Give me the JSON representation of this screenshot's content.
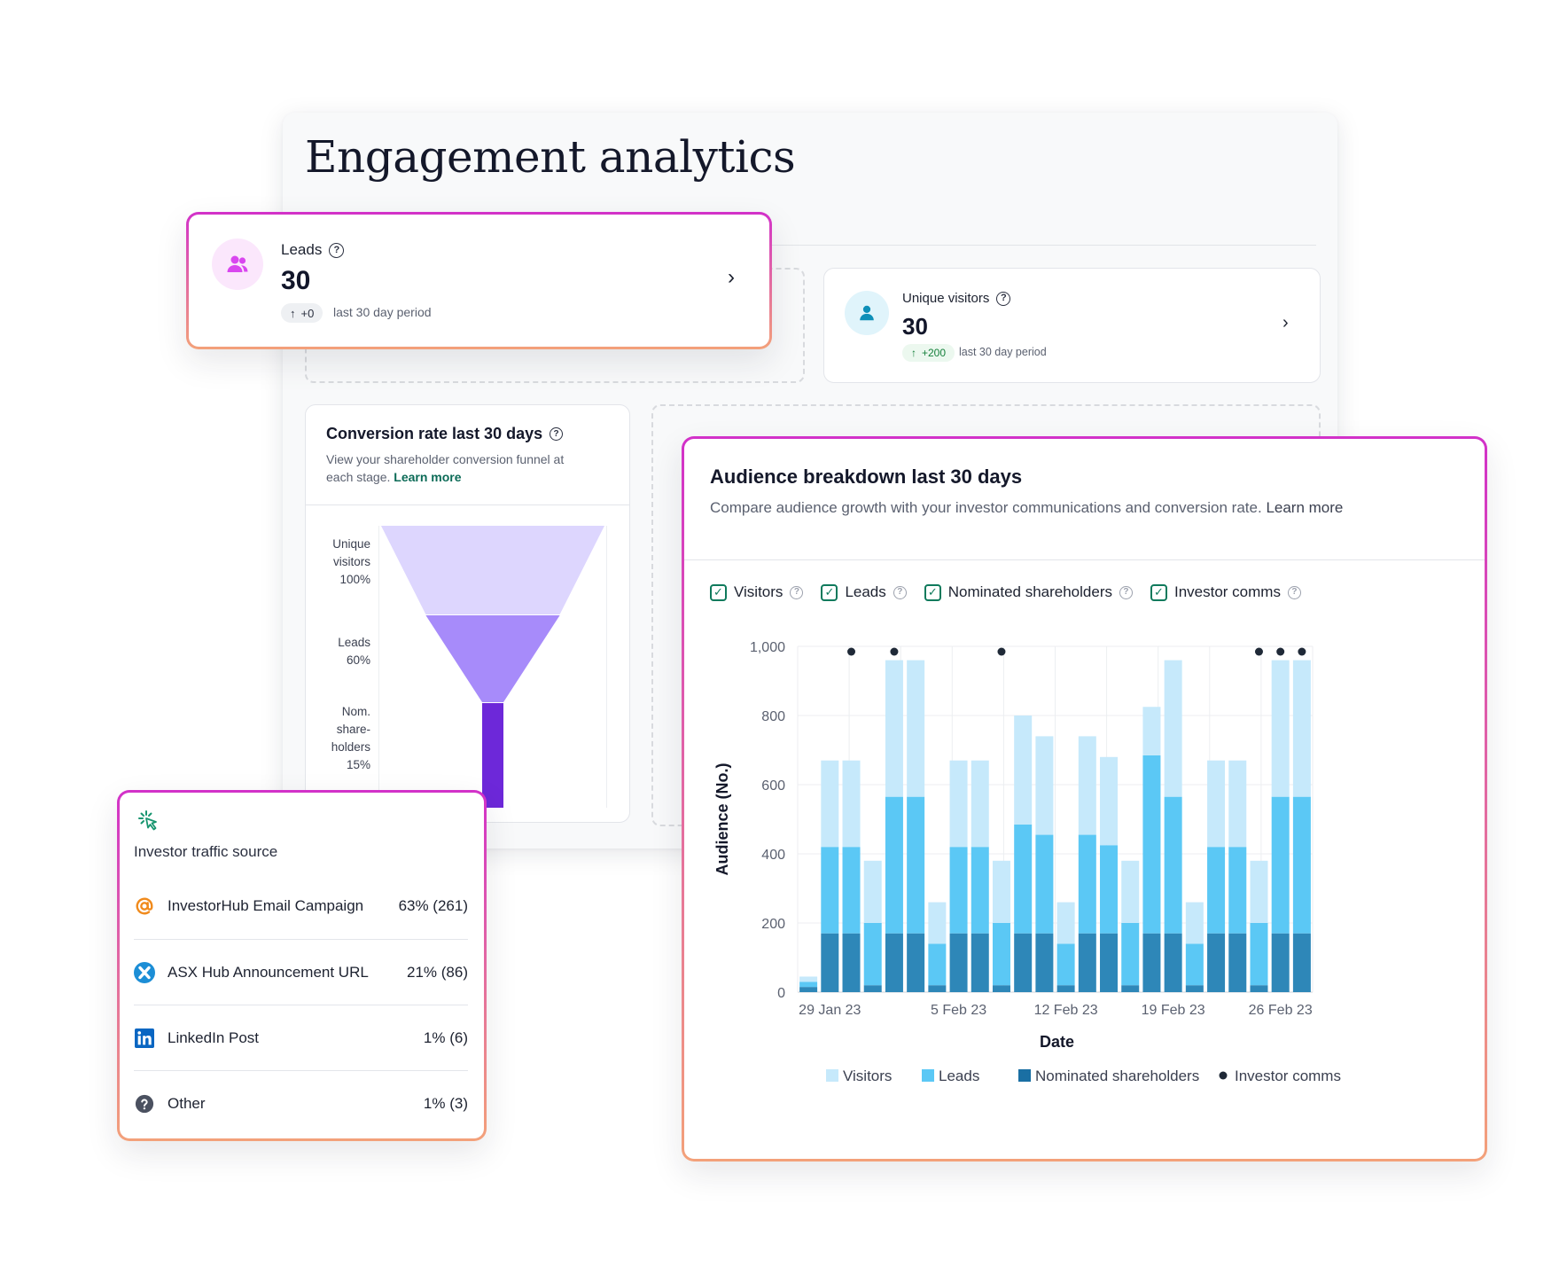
{
  "page": {
    "title": "Engagement analytics"
  },
  "leads_card": {
    "label": "Leads",
    "value": "30",
    "delta": "+0",
    "delta_arrow": "↑",
    "period": "last 30 day period",
    "icon": "users-icon",
    "accent": "#d946ef"
  },
  "visitors_card": {
    "label": "Unique visitors",
    "value": "30",
    "delta": "+200",
    "delta_arrow": "↑",
    "period": "last 30 day period",
    "icon": "user-icon",
    "accent": "#0e8fb8"
  },
  "conversion": {
    "title": "Conversion rate last 30 days",
    "subtitle": "View your shareholder conversion funnel at each stage.",
    "learn_more": "Learn more",
    "stages": [
      {
        "lines": [
          "Unique",
          "visitors",
          "100%"
        ],
        "percent": 100,
        "color": "#ddd6fe"
      },
      {
        "lines": [
          "Leads",
          "60%"
        ],
        "percent": 60,
        "color": "#a78bfa"
      },
      {
        "lines": [
          "Nom.",
          "share-",
          "holders",
          "15%"
        ],
        "percent": 15,
        "color": "#6d28d9"
      }
    ]
  },
  "traffic": {
    "title": "Investor traffic source",
    "icon": "cursor-click-icon",
    "rows": [
      {
        "name": "InvestorHub Email Campaign",
        "value": "63% (261)",
        "icon": "at-sign-icon",
        "color": "#f08a1c"
      },
      {
        "name": "ASX Hub Announcement URL",
        "value": "21% (86)",
        "icon": "x-logo-icon",
        "color": "#1c8ed6"
      },
      {
        "name": "LinkedIn Post",
        "value": "1% (6)",
        "icon": "linkedin-icon",
        "color": "#0a66c2"
      },
      {
        "name": "Other",
        "value": "1% (3)",
        "icon": "question-icon",
        "color": "#4b5160"
      }
    ]
  },
  "audience": {
    "title": "Audience breakdown last 30 days",
    "subtitle": "Compare audience growth with your investor communications and conversion rate.",
    "learn_more": "Learn more",
    "toggles": [
      "Visitors",
      "Leads",
      "Nominated shareholders",
      "Investor comms"
    ]
  },
  "chart_data": {
    "type": "bar",
    "stacked": true,
    "xlabel": "Date",
    "ylabel": "Audience (No.)",
    "ylim": [
      0,
      1000
    ],
    "yticks": [
      "0",
      "200",
      "400",
      "600",
      "800",
      "1,000"
    ],
    "xtick_labels": [
      {
        "label": "29 Jan 23",
        "index": 1
      },
      {
        "label": "5 Feb 23",
        "index": 7
      },
      {
        "label": "12 Feb 23",
        "index": 12
      },
      {
        "label": "19 Feb 23",
        "index": 17
      },
      {
        "label": "26 Feb 23",
        "index": 22
      }
    ],
    "categories": [
      "1",
      "2",
      "3",
      "4",
      "5",
      "6",
      "7",
      "8",
      "9",
      "10",
      "11",
      "12",
      "13",
      "14",
      "15",
      "16",
      "17",
      "18",
      "19",
      "20",
      "21",
      "22",
      "23",
      "24"
    ],
    "series": [
      {
        "name": "Nominated shareholders",
        "color": "#2e87b8",
        "values": [
          15,
          170,
          170,
          20,
          170,
          170,
          20,
          170,
          170,
          20,
          170,
          170,
          20,
          170,
          170,
          20,
          170,
          170,
          20,
          170,
          170,
          20,
          170,
          170
        ]
      },
      {
        "name": "Leads",
        "color": "#5bc8f5",
        "values": [
          15,
          250,
          250,
          180,
          395,
          395,
          120,
          250,
          250,
          180,
          315,
          285,
          120,
          285,
          255,
          180,
          515,
          395,
          120,
          250,
          250,
          180,
          395,
          395
        ]
      },
      {
        "name": "Visitors",
        "color": "#c6e9fb",
        "values": [
          15,
          250,
          250,
          180,
          395,
          395,
          120,
          250,
          250,
          180,
          315,
          285,
          120,
          285,
          255,
          180,
          140,
          395,
          120,
          250,
          250,
          180,
          395,
          395
        ]
      }
    ],
    "markers": {
      "name": "Investor comms",
      "color": "#1f2937",
      "indices": [
        2,
        4,
        9,
        21,
        22,
        23
      ]
    },
    "legend": [
      "Visitors",
      "Leads",
      "Nominated shareholders",
      "Investor comms"
    ],
    "legend_position": "bottom"
  }
}
